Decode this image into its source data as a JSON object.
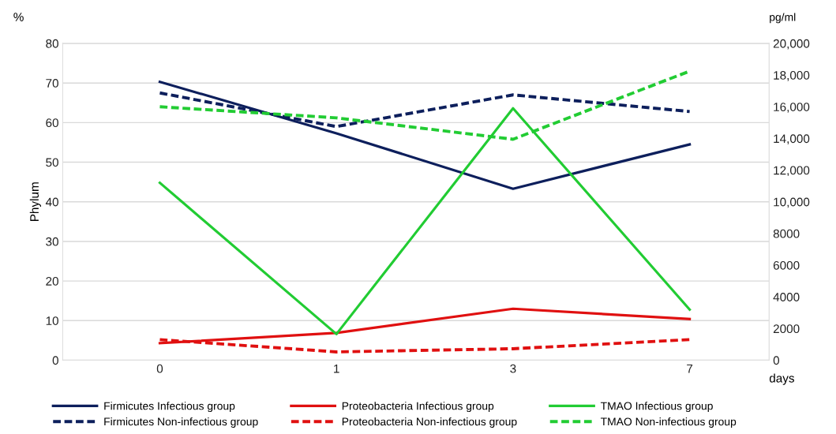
{
  "chart_data": {
    "type": "line",
    "xlabel": "days",
    "ylabel": "Phylum",
    "y2label": "pg/ml",
    "annotations": [
      "%"
    ],
    "categories": [
      "0",
      "1",
      "3",
      "7"
    ],
    "series": [
      {
        "name": "Firmicutes Infectious group",
        "color": "#0d1f5c",
        "line_style": "solid",
        "values": [
          70.3,
          57.3,
          43.3,
          54.5
        ]
      },
      {
        "name": "Firmicutes Non-infectious group",
        "color": "#0d1f5c",
        "line_style": "dashed",
        "values": [
          67.5,
          59,
          67,
          62.8
        ]
      },
      {
        "name": "Proteobacteria Infectious group",
        "color": "#e01010",
        "line_style": "solid",
        "values": [
          4.3,
          6.9,
          13,
          10.4
        ]
      },
      {
        "name": "Proteobacteria Non-infectious group",
        "color": "#e01010",
        "line_style": "dashed",
        "values": [
          5.2,
          2.1,
          2.9,
          5.2
        ]
      },
      {
        "name": "TMAO Infectious group",
        "color": "#22cc33",
        "line_style": "solid",
        "axis": "y2",
        "values": [
          11200,
          1650,
          15900,
          3200
        ]
      },
      {
        "name": "TMAO Non-infectious group",
        "color": "#22cc33",
        "line_style": "dashed",
        "axis": "y2",
        "values": [
          16000,
          15300,
          13950,
          18250
        ]
      }
    ],
    "ylim": [
      0,
      80
    ],
    "yticks": [
      0,
      10,
      20,
      30,
      40,
      50,
      60,
      70,
      80
    ],
    "y2lim": [
      0,
      20000
    ],
    "y2ticks": [
      0,
      2000,
      4000,
      6000,
      8000,
      {
        "value": 10000,
        "label": "10,000"
      },
      {
        "value": 12000,
        "label": "12,000"
      },
      {
        "value": 14000,
        "label": "14,000"
      },
      {
        "value": 16000,
        "label": "16,000"
      },
      {
        "value": 18000,
        "label": "18,000"
      },
      {
        "value": 20000,
        "label": "20,000"
      }
    ],
    "grid": "y",
    "legend": "bottom",
    "marker": "none"
  }
}
